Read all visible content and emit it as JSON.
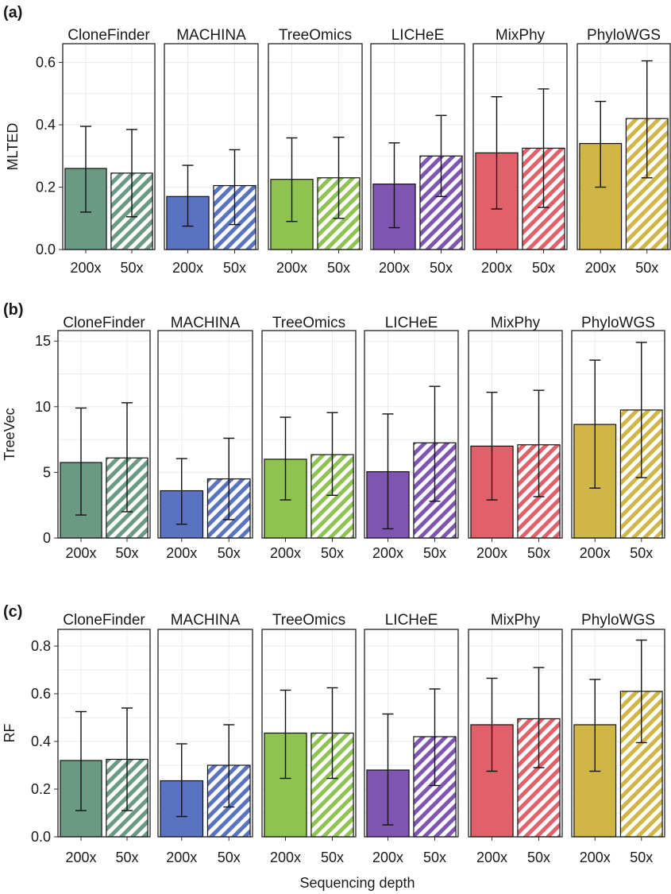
{
  "colors": {
    "CloneFinder": "#6b9a84",
    "MACHINA": "#5a73c0",
    "TreeOmics": "#8ec251",
    "LICHeE": "#7e56b2",
    "MixPhy": "#e2606a",
    "PhyloWGS": "#cfb647"
  },
  "xlabel_common": "Sequencing depth",
  "chart_data": [
    {
      "type": "bar",
      "panel_label": "(a)",
      "ylabel": "MLTED",
      "ylim": [
        0,
        0.66
      ],
      "yticks": [
        "0.0",
        "0.2",
        "0.4",
        "0.6"
      ],
      "ytick_values": [
        0.0,
        0.2,
        0.4,
        0.6
      ],
      "categories": [
        "200x",
        "50x"
      ],
      "facets": [
        {
          "name": "CloneFinder",
          "values": [
            0.26,
            0.245
          ],
          "err_low": [
            0.12,
            0.105
          ],
          "err_high": [
            0.395,
            0.385
          ]
        },
        {
          "name": "MACHINA",
          "values": [
            0.17,
            0.205
          ],
          "err_low": [
            0.075,
            0.08
          ],
          "err_high": [
            0.27,
            0.32
          ]
        },
        {
          "name": "TreeOmics",
          "values": [
            0.225,
            0.23
          ],
          "err_low": [
            0.09,
            0.1
          ],
          "err_high": [
            0.358,
            0.36
          ]
        },
        {
          "name": "LICHeE",
          "values": [
            0.21,
            0.3
          ],
          "err_low": [
            0.07,
            0.17
          ],
          "err_high": [
            0.342,
            0.43
          ]
        },
        {
          "name": "MixPhy",
          "values": [
            0.31,
            0.325
          ],
          "err_low": [
            0.13,
            0.135
          ],
          "err_high": [
            0.49,
            0.515
          ]
        },
        {
          "name": "PhyloWGS",
          "values": [
            0.34,
            0.42
          ],
          "err_low": [
            0.2,
            0.23
          ],
          "err_high": [
            0.475,
            0.605
          ]
        }
      ]
    },
    {
      "type": "bar",
      "panel_label": "(b)",
      "ylabel": "TreeVec",
      "ylim": [
        0,
        15.8
      ],
      "yticks": [
        "0",
        "5",
        "10",
        "15"
      ],
      "ytick_values": [
        0,
        5,
        10,
        15
      ],
      "categories": [
        "200x",
        "50x"
      ],
      "facets": [
        {
          "name": "CloneFinder",
          "values": [
            5.75,
            6.1
          ],
          "err_low": [
            1.75,
            2.0
          ],
          "err_high": [
            9.9,
            10.3
          ]
        },
        {
          "name": "MACHINA",
          "values": [
            3.6,
            4.5
          ],
          "err_low": [
            1.05,
            1.4
          ],
          "err_high": [
            6.05,
            7.6
          ]
        },
        {
          "name": "TreeOmics",
          "values": [
            6.0,
            6.35
          ],
          "err_low": [
            2.9,
            3.25
          ],
          "err_high": [
            9.2,
            9.55
          ]
        },
        {
          "name": "LICHeE",
          "values": [
            5.05,
            7.25
          ],
          "err_low": [
            0.7,
            2.8
          ],
          "err_high": [
            9.45,
            11.55
          ]
        },
        {
          "name": "MixPhy",
          "values": [
            7.0,
            7.1
          ],
          "err_low": [
            2.9,
            3.15
          ],
          "err_high": [
            11.1,
            11.25
          ]
        },
        {
          "name": "PhyloWGS",
          "values": [
            8.65,
            9.75
          ],
          "err_low": [
            3.8,
            4.6
          ],
          "err_high": [
            13.55,
            14.9
          ]
        }
      ]
    },
    {
      "type": "bar",
      "panel_label": "(c)",
      "ylabel": "RF",
      "ylim": [
        0,
        0.87
      ],
      "yticks": [
        "0.0",
        "0.2",
        "0.4",
        "0.6",
        "0.8"
      ],
      "ytick_values": [
        0.0,
        0.2,
        0.4,
        0.6,
        0.8
      ],
      "categories": [
        "200x",
        "50x"
      ],
      "facets": [
        {
          "name": "CloneFinder",
          "values": [
            0.32,
            0.325
          ],
          "err_low": [
            0.11,
            0.11
          ],
          "err_high": [
            0.525,
            0.54
          ]
        },
        {
          "name": "MACHINA",
          "values": [
            0.235,
            0.3
          ],
          "err_low": [
            0.085,
            0.125
          ],
          "err_high": [
            0.39,
            0.47
          ]
        },
        {
          "name": "TreeOmics",
          "values": [
            0.435,
            0.435
          ],
          "err_low": [
            0.245,
            0.245
          ],
          "err_high": [
            0.615,
            0.625
          ]
        },
        {
          "name": "LICHeE",
          "values": [
            0.28,
            0.42
          ],
          "err_low": [
            0.05,
            0.215
          ],
          "err_high": [
            0.515,
            0.62
          ]
        },
        {
          "name": "MixPhy",
          "values": [
            0.47,
            0.495
          ],
          "err_low": [
            0.275,
            0.29
          ],
          "err_high": [
            0.665,
            0.71
          ]
        },
        {
          "name": "PhyloWGS",
          "values": [
            0.47,
            0.61
          ],
          "err_low": [
            0.275,
            0.395
          ],
          "err_high": [
            0.66,
            0.825
          ]
        }
      ]
    }
  ]
}
